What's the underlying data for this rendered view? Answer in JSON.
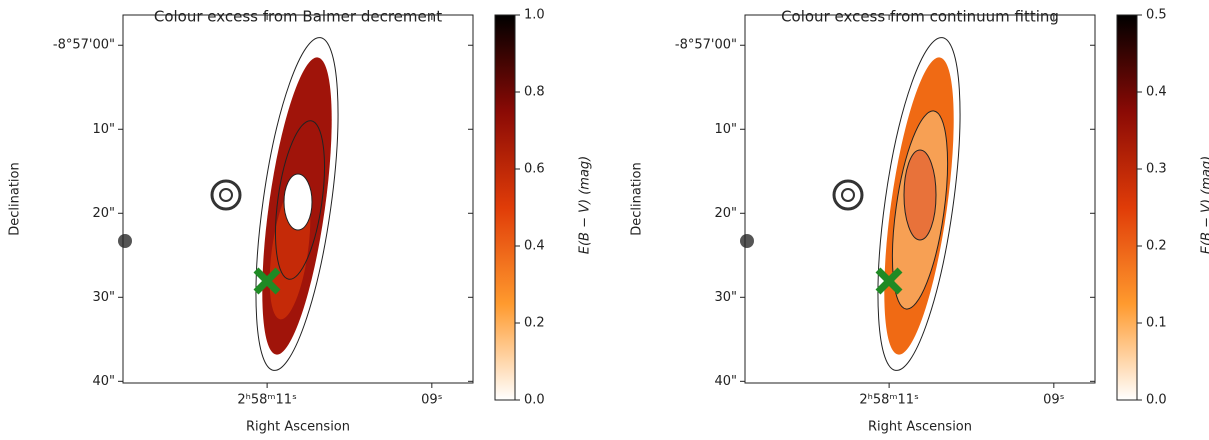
{
  "chart_data": [
    {
      "type": "image",
      "title": "Colour excess from Balmer decrement",
      "xlabel": "Right Ascension",
      "ylabel": "Declination",
      "xlim": [
        12.75,
        8.5
      ],
      "xticks": [
        {
          "value": 11,
          "label": "2ʰ58ᵐ11ˢ"
        },
        {
          "value": 9,
          "label": "09ˢ"
        }
      ],
      "ylim": [
        -3.6,
        40.2
      ],
      "yticks": [
        {
          "value": 0,
          "label": "-8°57'00\""
        },
        {
          "value": 10,
          "label": "10\""
        },
        {
          "value": 20,
          "label": "20\""
        },
        {
          "value": 30,
          "label": "30\""
        },
        {
          "value": 40,
          "label": "40\""
        }
      ],
      "colorbar_label": "E(B − V) (mag)",
      "clim": [
        0,
        1.0
      ],
      "cticks": [
        {
          "value": 0,
          "label": "0.0"
        },
        0.2,
        0.4,
        0.6,
        0.8,
        {
          "value": 1.0,
          "label": "1.0"
        }
      ]
    },
    {
      "type": "image",
      "title": "Colour excess from continuum fitting",
      "xlabel": "Right Ascension",
      "ylabel": "Declination",
      "xlim": [
        12.75,
        8.5
      ],
      "xticks": [
        {
          "value": 11,
          "label": "2ʰ58ᵐ11ˢ"
        },
        {
          "value": 9,
          "label": "09ˢ"
        }
      ],
      "ylim": [
        -3.6,
        40.2
      ],
      "yticks": [
        {
          "value": 0,
          "label": "-8°57'00\""
        },
        {
          "value": 10,
          "label": "10\""
        },
        {
          "value": 20,
          "label": "20\""
        },
        {
          "value": 30,
          "label": "30\""
        },
        {
          "value": 40,
          "label": "40\""
        }
      ],
      "colorbar_label": "E(B − V) (mag)",
      "clim": [
        0,
        0.5
      ],
      "cticks": [
        {
          "value": 0,
          "label": "0.0"
        },
        0.1,
        0.2,
        0.3,
        0.4,
        0.5
      ]
    }
  ]
}
